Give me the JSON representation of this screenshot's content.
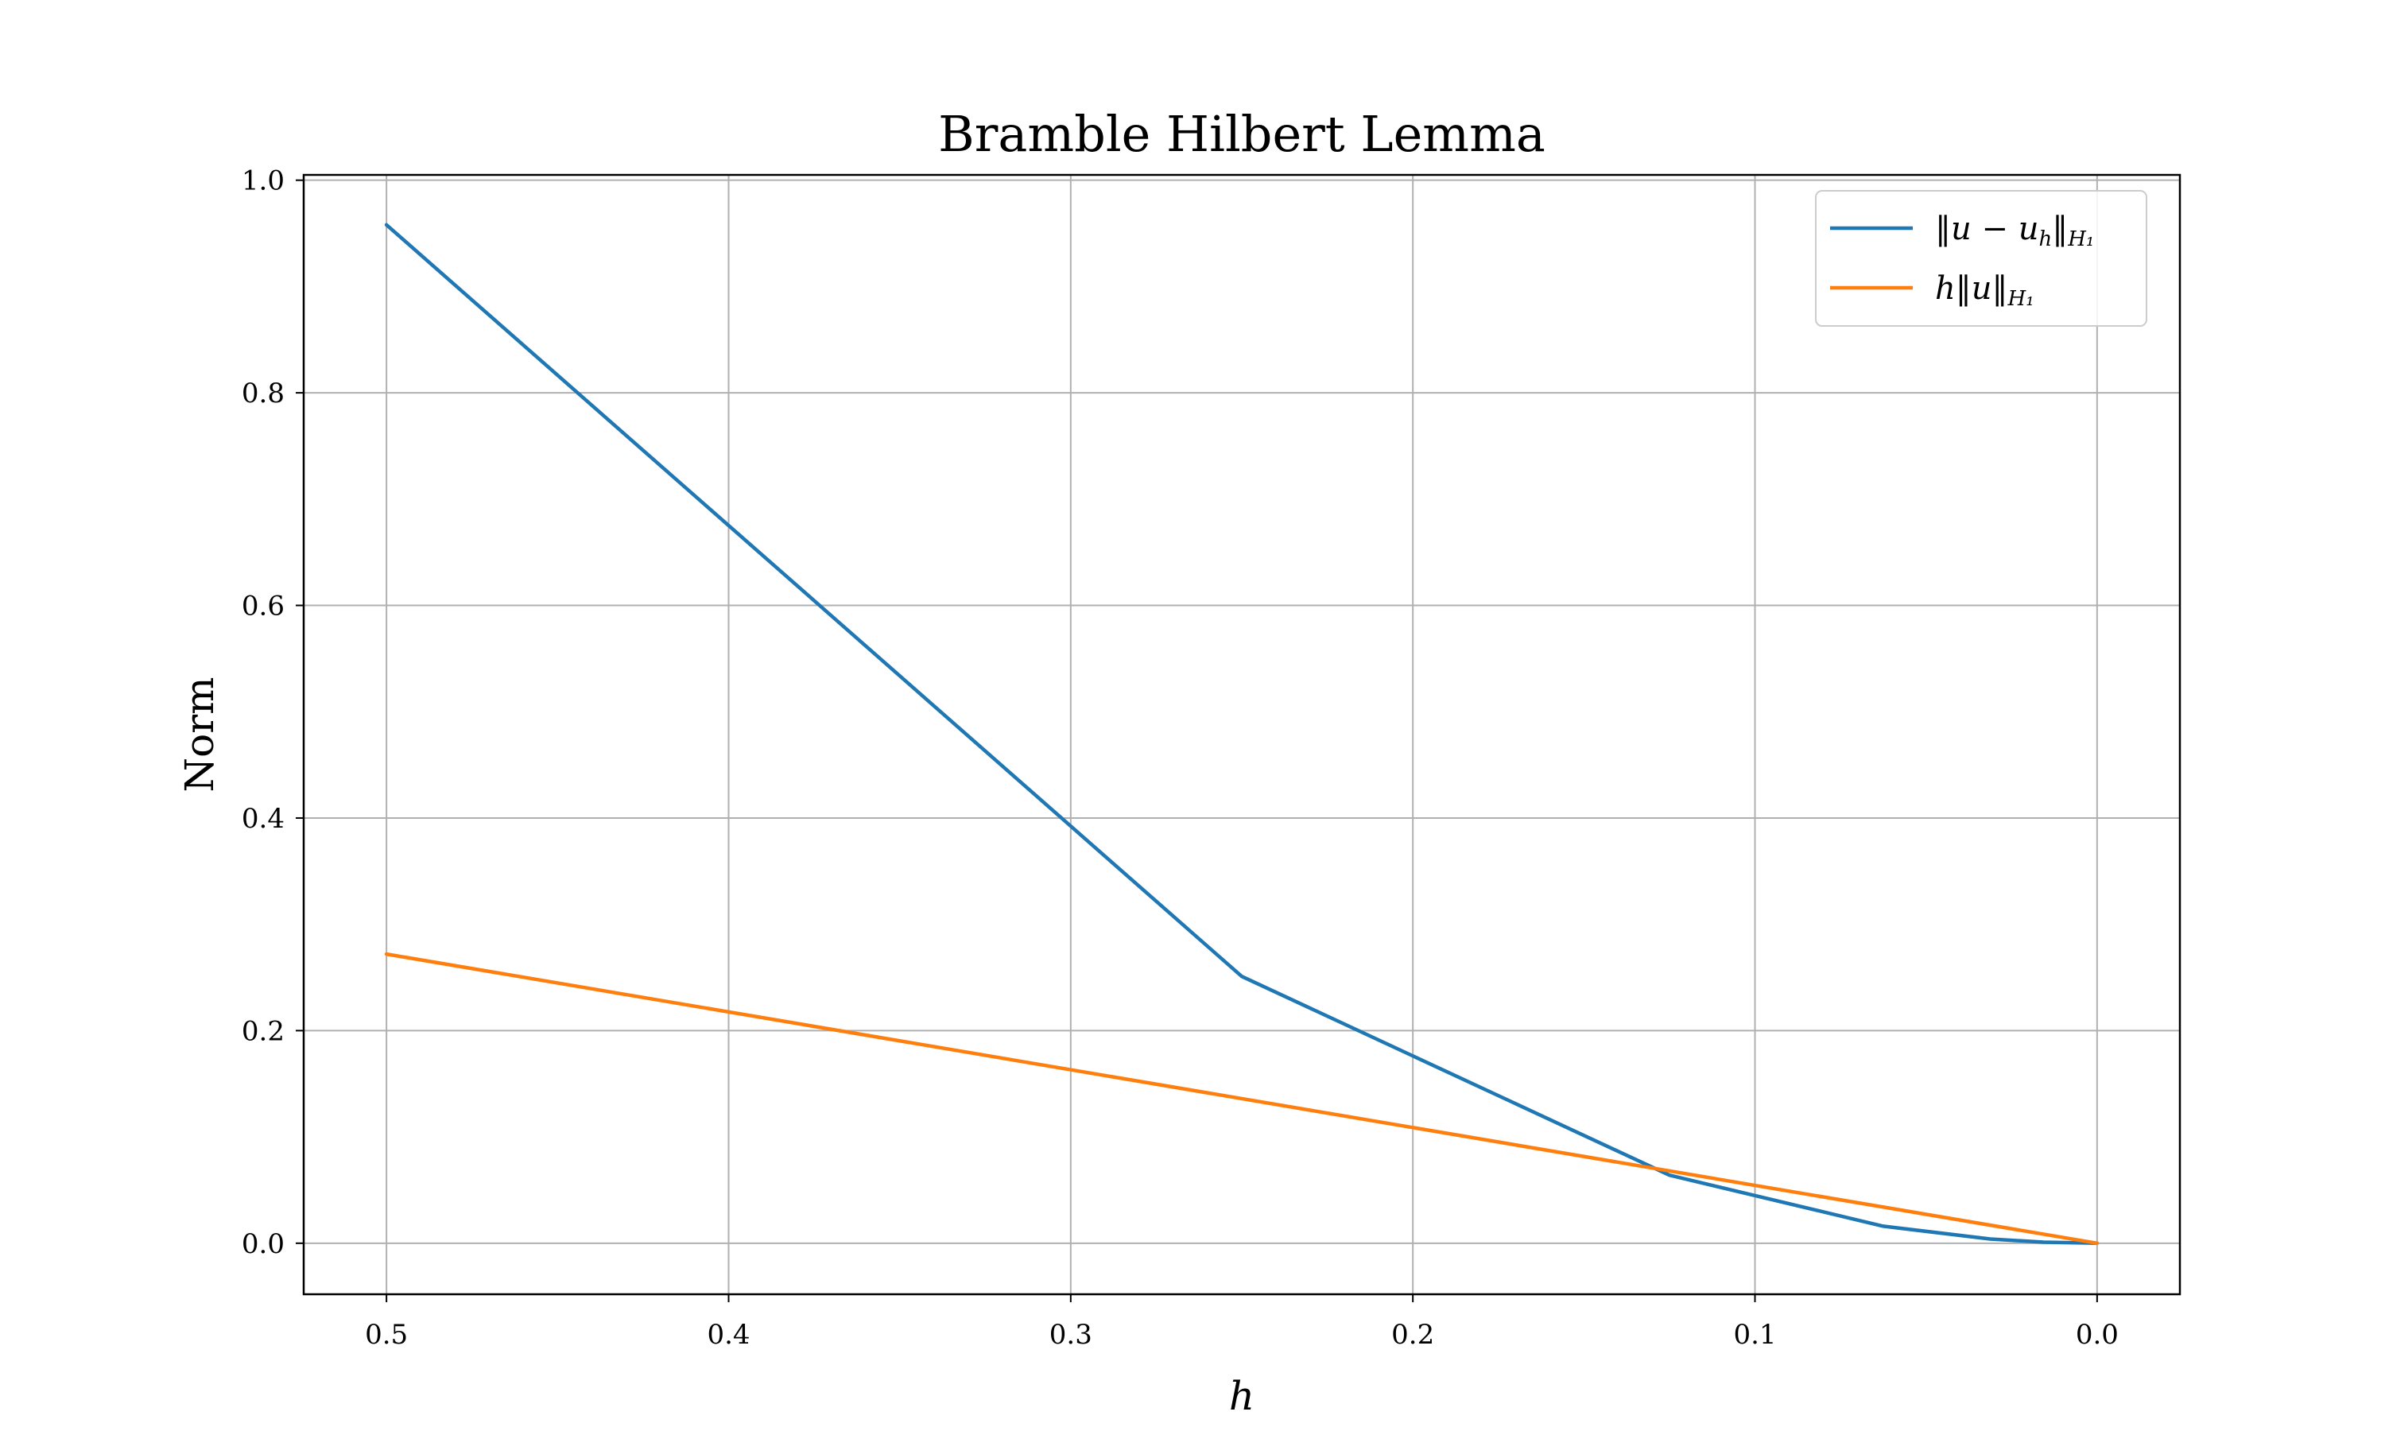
{
  "chart_data": {
    "type": "line",
    "title": "Bramble Hilbert Lemma",
    "xlabel": "h",
    "ylabel": "Norm",
    "x_inverted": true,
    "xlim": [
      0.5242,
      -0.0242
    ],
    "ylim": [
      -0.048,
      1.005
    ],
    "x_ticks": [
      0.5,
      0.4,
      0.3,
      0.2,
      0.1,
      0.0
    ],
    "x_tick_labels": [
      "0.5",
      "0.4",
      "0.3",
      "0.2",
      "0.1",
      "0.0"
    ],
    "y_ticks": [
      0.0,
      0.2,
      0.4,
      0.6,
      0.8,
      1.0
    ],
    "y_tick_labels": [
      "0.0",
      "0.2",
      "0.4",
      "0.6",
      "0.8",
      "1.0"
    ],
    "grid": true,
    "legend_position": "top-right",
    "series": [
      {
        "name": "‖u − u_h‖_{H_1}",
        "legend_main": "‖u − u",
        "legend_sub_inner": "h",
        "legend_mid": "‖",
        "legend_sub_outer": "H₁",
        "color": "#1f77b4",
        "x": [
          0.5,
          0.25,
          0.125,
          0.0625,
          0.03125,
          0.015625,
          0.0
        ],
        "y": [
          0.958,
          0.251,
          0.064,
          0.016,
          0.004,
          0.001,
          0.0
        ]
      },
      {
        "name": "h‖u‖_{H_1}",
        "legend_main": "h‖u‖",
        "legend_sub_inner": "",
        "legend_mid": "",
        "legend_sub_outer": "H₁",
        "color": "#ff7f0e",
        "x": [
          0.5,
          0.0
        ],
        "y": [
          0.272,
          0.0
        ]
      }
    ]
  }
}
